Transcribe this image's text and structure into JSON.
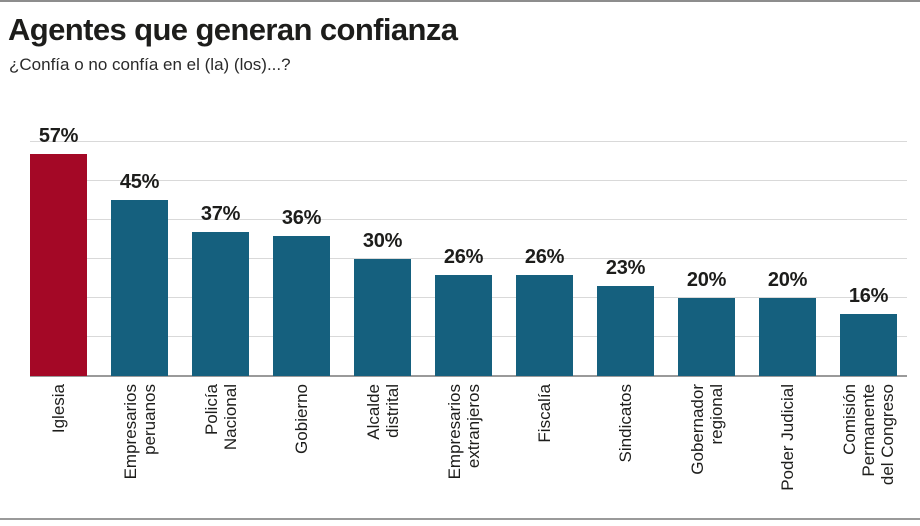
{
  "header": {
    "title": "Agentes que generan confianza",
    "subtitle": "¿Confía o no confía en el (la) (los)...?"
  },
  "chart_data": {
    "type": "bar",
    "title": "Agentes que generan confianza",
    "subtitle": "¿Confía o no confía en el (la) (los)...?",
    "categories": [
      "Iglesia",
      "Empresarios peruanos",
      "Policía Nacional",
      "Gobierno",
      "Alcalde distrital",
      "Empresarios extranjeros",
      "Fiscalía",
      "Sindicatos",
      "Gobernador regional",
      "Poder Judicial",
      "Comisión Permanente del Congreso"
    ],
    "category_lines": [
      [
        "Iglesia"
      ],
      [
        "Empresarios",
        "peruanos"
      ],
      [
        "Policía",
        "Nacional"
      ],
      [
        "Gobierno"
      ],
      [
        "Alcalde",
        "distrital"
      ],
      [
        "Empresarios",
        "extranjeros"
      ],
      [
        "Fiscalía"
      ],
      [
        "Sindicatos"
      ],
      [
        "Gobernador",
        "regional"
      ],
      [
        "Poder Judicial"
      ],
      [
        "Comisión",
        "Permanente",
        "del Congreso"
      ]
    ],
    "values": [
      57,
      45,
      37,
      36,
      30,
      26,
      26,
      23,
      20,
      20,
      16
    ],
    "value_labels": [
      "57%",
      "45%",
      "37%",
      "36%",
      "30%",
      "26%",
      "26%",
      "23%",
      "20%",
      "20%",
      "16%"
    ],
    "unit": "%",
    "ylim": [
      0,
      60
    ],
    "gridlines": [
      10,
      20,
      30,
      40,
      50,
      60
    ],
    "grid": true,
    "legend": false,
    "xlabel": "",
    "ylabel": "",
    "highlight_index": 0,
    "colors": {
      "highlight": "#a40826",
      "default": "#15607e",
      "gridline": "#d9d9d9",
      "baseline": "#9a9a9a",
      "text": "#1d1d1b"
    }
  }
}
